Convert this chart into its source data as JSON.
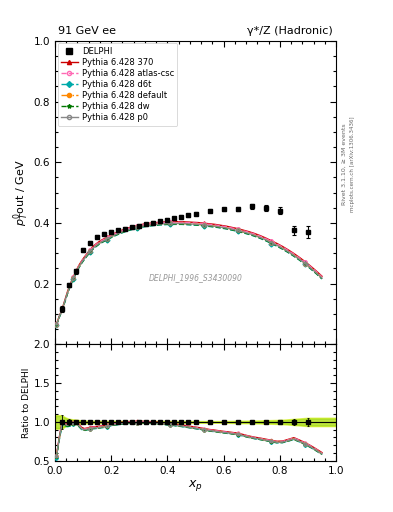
{
  "title_left": "91 GeV ee",
  "title_right": "γ*/Z (Hadronic)",
  "ylabel_main": "p$^{0}_{T}$out / GeV",
  "ylabel_ratio": "Ratio to DELPHI",
  "xlabel": "x$_p$",
  "watermark": "DELPHI_1996_S3430090",
  "rivet_label": "Rivet 3.1.10, ≥ 3M events",
  "side_label": "mcplots.cern.ch [arXiv:1306.3436]",
  "ylim_main": [
    0.0,
    1.0
  ],
  "ylim_ratio": [
    0.5,
    2.0
  ],
  "xlim": [
    0.0,
    1.0
  ],
  "data_x": [
    0.025,
    0.05,
    0.075,
    0.1,
    0.125,
    0.15,
    0.175,
    0.2,
    0.225,
    0.25,
    0.275,
    0.3,
    0.325,
    0.35,
    0.375,
    0.4,
    0.425,
    0.45,
    0.475,
    0.5,
    0.55,
    0.6,
    0.65,
    0.7,
    0.75,
    0.8,
    0.85,
    0.9
  ],
  "data_y": [
    0.115,
    0.195,
    0.24,
    0.31,
    0.335,
    0.355,
    0.365,
    0.37,
    0.375,
    0.38,
    0.385,
    0.39,
    0.395,
    0.4,
    0.405,
    0.41,
    0.415,
    0.42,
    0.425,
    0.43,
    0.44,
    0.445,
    0.445,
    0.455,
    0.45,
    0.44,
    0.375,
    0.37
  ],
  "data_yerr": [
    0.01,
    0.008,
    0.007,
    0.006,
    0.005,
    0.005,
    0.005,
    0.005,
    0.005,
    0.005,
    0.005,
    0.005,
    0.005,
    0.005,
    0.005,
    0.005,
    0.005,
    0.005,
    0.005,
    0.005,
    0.005,
    0.005,
    0.007,
    0.008,
    0.01,
    0.012,
    0.015,
    0.02
  ],
  "mc_x": [
    0.005,
    0.015,
    0.025,
    0.035,
    0.045,
    0.055,
    0.065,
    0.075,
    0.085,
    0.095,
    0.105,
    0.115,
    0.125,
    0.135,
    0.145,
    0.155,
    0.165,
    0.175,
    0.185,
    0.195,
    0.21,
    0.23,
    0.25,
    0.27,
    0.29,
    0.31,
    0.33,
    0.35,
    0.37,
    0.39,
    0.41,
    0.43,
    0.45,
    0.47,
    0.49,
    0.51,
    0.53,
    0.55,
    0.57,
    0.59,
    0.61,
    0.63,
    0.65,
    0.67,
    0.69,
    0.71,
    0.73,
    0.75,
    0.77,
    0.79,
    0.81,
    0.83,
    0.85,
    0.87,
    0.89,
    0.91,
    0.93,
    0.95
  ],
  "mc_370_y": [
    0.065,
    0.092,
    0.115,
    0.145,
    0.175,
    0.2,
    0.222,
    0.242,
    0.26,
    0.275,
    0.288,
    0.3,
    0.312,
    0.322,
    0.33,
    0.337,
    0.343,
    0.348,
    0.353,
    0.358,
    0.365,
    0.373,
    0.38,
    0.386,
    0.391,
    0.395,
    0.398,
    0.4,
    0.402,
    0.403,
    0.404,
    0.404,
    0.404,
    0.403,
    0.402,
    0.401,
    0.399,
    0.397,
    0.395,
    0.392,
    0.389,
    0.385,
    0.381,
    0.376,
    0.371,
    0.365,
    0.358,
    0.35,
    0.341,
    0.332,
    0.322,
    0.311,
    0.299,
    0.286,
    0.272,
    0.257,
    0.241,
    0.224
  ],
  "mc_atlas_y": [
    0.065,
    0.091,
    0.114,
    0.143,
    0.173,
    0.198,
    0.22,
    0.24,
    0.258,
    0.273,
    0.286,
    0.298,
    0.31,
    0.32,
    0.328,
    0.335,
    0.341,
    0.346,
    0.351,
    0.356,
    0.363,
    0.371,
    0.378,
    0.384,
    0.389,
    0.393,
    0.396,
    0.398,
    0.4,
    0.401,
    0.402,
    0.402,
    0.402,
    0.401,
    0.4,
    0.399,
    0.397,
    0.395,
    0.393,
    0.39,
    0.387,
    0.383,
    0.379,
    0.374,
    0.369,
    0.363,
    0.356,
    0.348,
    0.339,
    0.33,
    0.32,
    0.309,
    0.297,
    0.284,
    0.27,
    0.255,
    0.239,
    0.222
  ],
  "mc_d6t_y": [
    0.062,
    0.088,
    0.11,
    0.139,
    0.168,
    0.193,
    0.215,
    0.234,
    0.252,
    0.267,
    0.28,
    0.292,
    0.303,
    0.313,
    0.321,
    0.328,
    0.334,
    0.339,
    0.344,
    0.349,
    0.356,
    0.364,
    0.371,
    0.377,
    0.382,
    0.386,
    0.389,
    0.391,
    0.393,
    0.394,
    0.395,
    0.395,
    0.395,
    0.394,
    0.393,
    0.392,
    0.39,
    0.388,
    0.386,
    0.383,
    0.38,
    0.376,
    0.372,
    0.367,
    0.362,
    0.356,
    0.349,
    0.341,
    0.332,
    0.323,
    0.313,
    0.302,
    0.29,
    0.277,
    0.263,
    0.248,
    0.232,
    0.215
  ],
  "mc_default_y": [
    0.064,
    0.09,
    0.113,
    0.142,
    0.171,
    0.196,
    0.218,
    0.238,
    0.255,
    0.27,
    0.283,
    0.295,
    0.306,
    0.316,
    0.324,
    0.331,
    0.337,
    0.342,
    0.347,
    0.352,
    0.359,
    0.367,
    0.374,
    0.38,
    0.385,
    0.389,
    0.392,
    0.394,
    0.396,
    0.397,
    0.398,
    0.398,
    0.398,
    0.397,
    0.396,
    0.395,
    0.393,
    0.391,
    0.389,
    0.386,
    0.383,
    0.379,
    0.375,
    0.37,
    0.365,
    0.359,
    0.352,
    0.344,
    0.335,
    0.326,
    0.316,
    0.305,
    0.293,
    0.28,
    0.266,
    0.251,
    0.235,
    0.218
  ],
  "mc_dw_y": [
    0.063,
    0.089,
    0.112,
    0.14,
    0.169,
    0.194,
    0.216,
    0.236,
    0.253,
    0.268,
    0.281,
    0.293,
    0.304,
    0.314,
    0.322,
    0.329,
    0.335,
    0.34,
    0.345,
    0.35,
    0.357,
    0.365,
    0.372,
    0.378,
    0.383,
    0.387,
    0.39,
    0.392,
    0.394,
    0.395,
    0.396,
    0.396,
    0.396,
    0.395,
    0.394,
    0.393,
    0.391,
    0.389,
    0.387,
    0.384,
    0.381,
    0.377,
    0.373,
    0.368,
    0.363,
    0.357,
    0.35,
    0.342,
    0.333,
    0.324,
    0.314,
    0.303,
    0.291,
    0.278,
    0.264,
    0.249,
    0.233,
    0.216
  ],
  "mc_p0_y": [
    0.064,
    0.09,
    0.113,
    0.142,
    0.171,
    0.196,
    0.218,
    0.237,
    0.255,
    0.27,
    0.283,
    0.295,
    0.306,
    0.316,
    0.324,
    0.331,
    0.337,
    0.342,
    0.347,
    0.352,
    0.359,
    0.367,
    0.374,
    0.38,
    0.385,
    0.389,
    0.392,
    0.394,
    0.396,
    0.397,
    0.398,
    0.398,
    0.398,
    0.397,
    0.396,
    0.395,
    0.393,
    0.391,
    0.389,
    0.386,
    0.383,
    0.379,
    0.375,
    0.37,
    0.365,
    0.359,
    0.352,
    0.344,
    0.335,
    0.326,
    0.316,
    0.305,
    0.293,
    0.28,
    0.266,
    0.251,
    0.235,
    0.218
  ],
  "color_370": "#cc0000",
  "color_atlas": "#ff69b4",
  "color_d6t": "#00aaaa",
  "color_default": "#ff8800",
  "color_dw": "#007700",
  "color_p0": "#888888",
  "color_data": "black",
  "ratio_band_color_outer": "#ccee00",
  "ratio_band_color_inner": "#88cc00",
  "ratio_band_alpha": 0.6
}
